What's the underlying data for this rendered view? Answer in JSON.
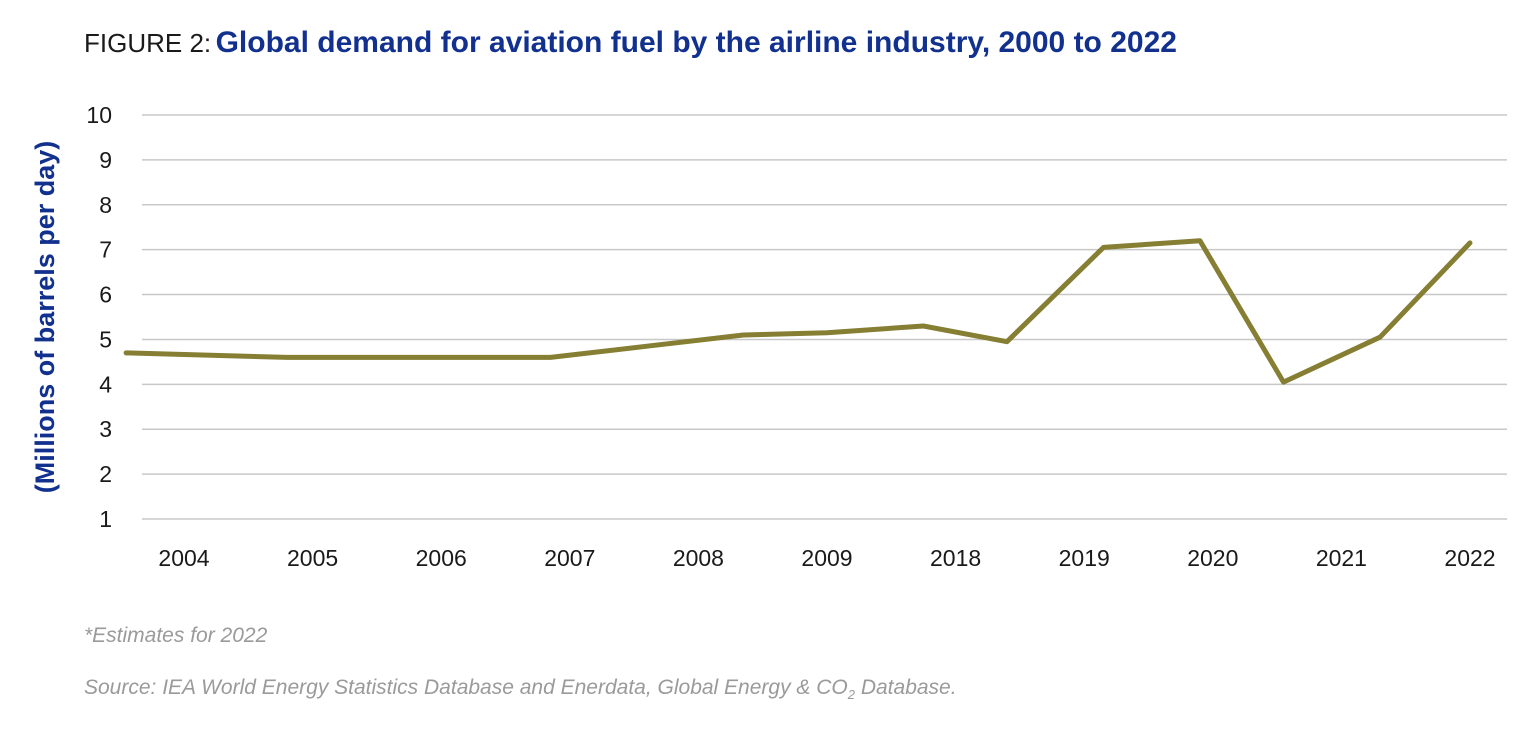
{
  "figure": {
    "prefix": "FIGURE 2:",
    "title": "Global demand for aviation fuel by the airline industry, 2000 to 2022"
  },
  "chart_data": {
    "type": "line",
    "categories": [
      "2004",
      "2005",
      "2006",
      "2007",
      "2008",
      "2009",
      "2018",
      "2019",
      "2020",
      "2021",
      "2022"
    ],
    "series": [
      {
        "x": [
          2003.55,
          2004.8,
          2005.65,
          2006.85,
          2007.6,
          2008.35,
          2009.0,
          2009.75,
          2018.4,
          2019.15,
          2019.9,
          2020.55,
          2021.3,
          2022.0
        ],
        "values": [
          4.7,
          4.6,
          4.6,
          4.6,
          4.85,
          5.1,
          5.15,
          5.3,
          4.95,
          7.05,
          7.2,
          4.05,
          5.05,
          7.15
        ]
      }
    ],
    "ylabel": "(Millions of barrels per day)",
    "ylim": [
      1,
      10
    ],
    "yticks": [
      1,
      2,
      3,
      4,
      5,
      6,
      7,
      8,
      9,
      10
    ],
    "grid": true,
    "line_color": "#857e33",
    "grid_color": "#c8c8c8",
    "axis_label_color": "#12318f"
  },
  "notes": {
    "estimate": "*Estimates for 2022",
    "source_prefix": "Source: IEA World Energy Statistics Database and Enerdata, Global Energy & CO",
    "source_sub": "2",
    "source_suffix": " Database."
  }
}
